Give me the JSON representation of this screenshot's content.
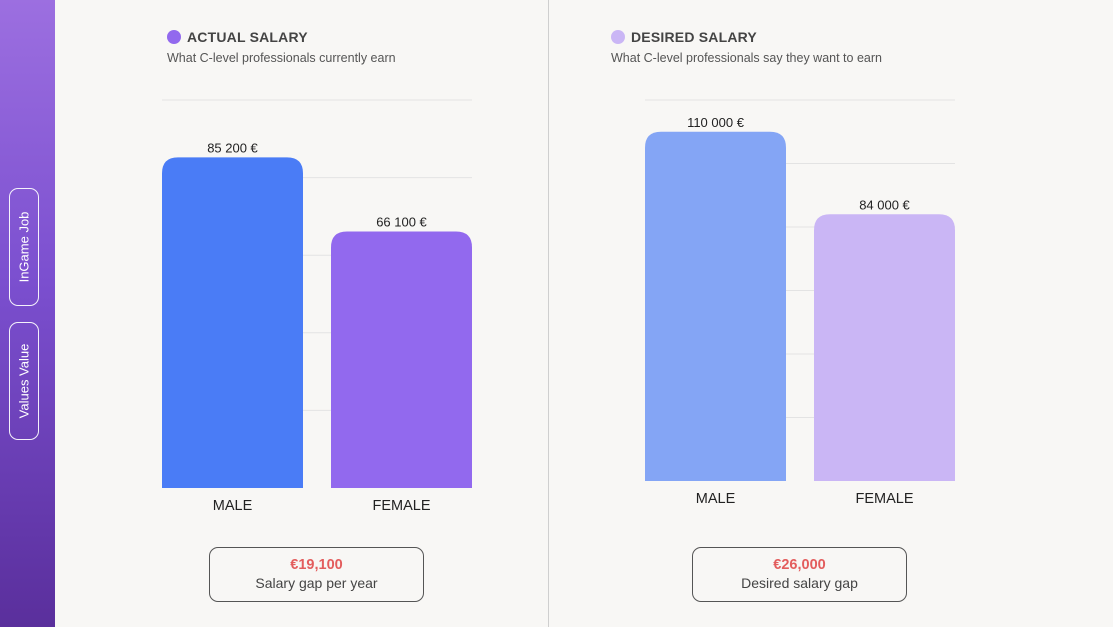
{
  "sidebar": {
    "tabs": [
      {
        "label": "InGame Job"
      },
      {
        "label": "Values Value"
      }
    ]
  },
  "colors": {
    "sidebar_gradient_top": "#9c6fe0",
    "sidebar_gradient_bottom": "#5a2f9c",
    "actual_male": "#4a7cf6",
    "actual_female": "#9269ee",
    "desired_male": "#84a5f5",
    "desired_female": "#cab6f5",
    "gap_amount": "#e35d5d"
  },
  "chart_data": [
    {
      "type": "bar",
      "title": "ACTUAL SALARY",
      "subtitle": "What C-level professionals currently earn",
      "legend_color": "#9269ee",
      "categories": [
        "MALE",
        "FEMALE"
      ],
      "values": [
        85200,
        66100
      ],
      "value_labels": [
        "85 200 €",
        "66 100 €"
      ],
      "colors": [
        "#4a7cf6",
        "#9269ee"
      ],
      "ylim": [
        0,
        100000
      ],
      "grid": true,
      "gap": {
        "amount": "€19,100",
        "caption": "Salary gap per year"
      }
    },
    {
      "type": "bar",
      "title": "DESIRED SALARY",
      "subtitle": "What C-level professionals say they want to earn",
      "legend_color": "#cab6f5",
      "categories": [
        "MALE",
        "FEMALE"
      ],
      "values": [
        110000,
        84000
      ],
      "value_labels": [
        "110 000 €",
        "84 000 €"
      ],
      "colors": [
        "#84a5f5",
        "#cab6f5"
      ],
      "ylim": [
        0,
        120000
      ],
      "grid": true,
      "gap": {
        "amount": "€26,000",
        "caption": "Desired salary gap"
      }
    }
  ]
}
